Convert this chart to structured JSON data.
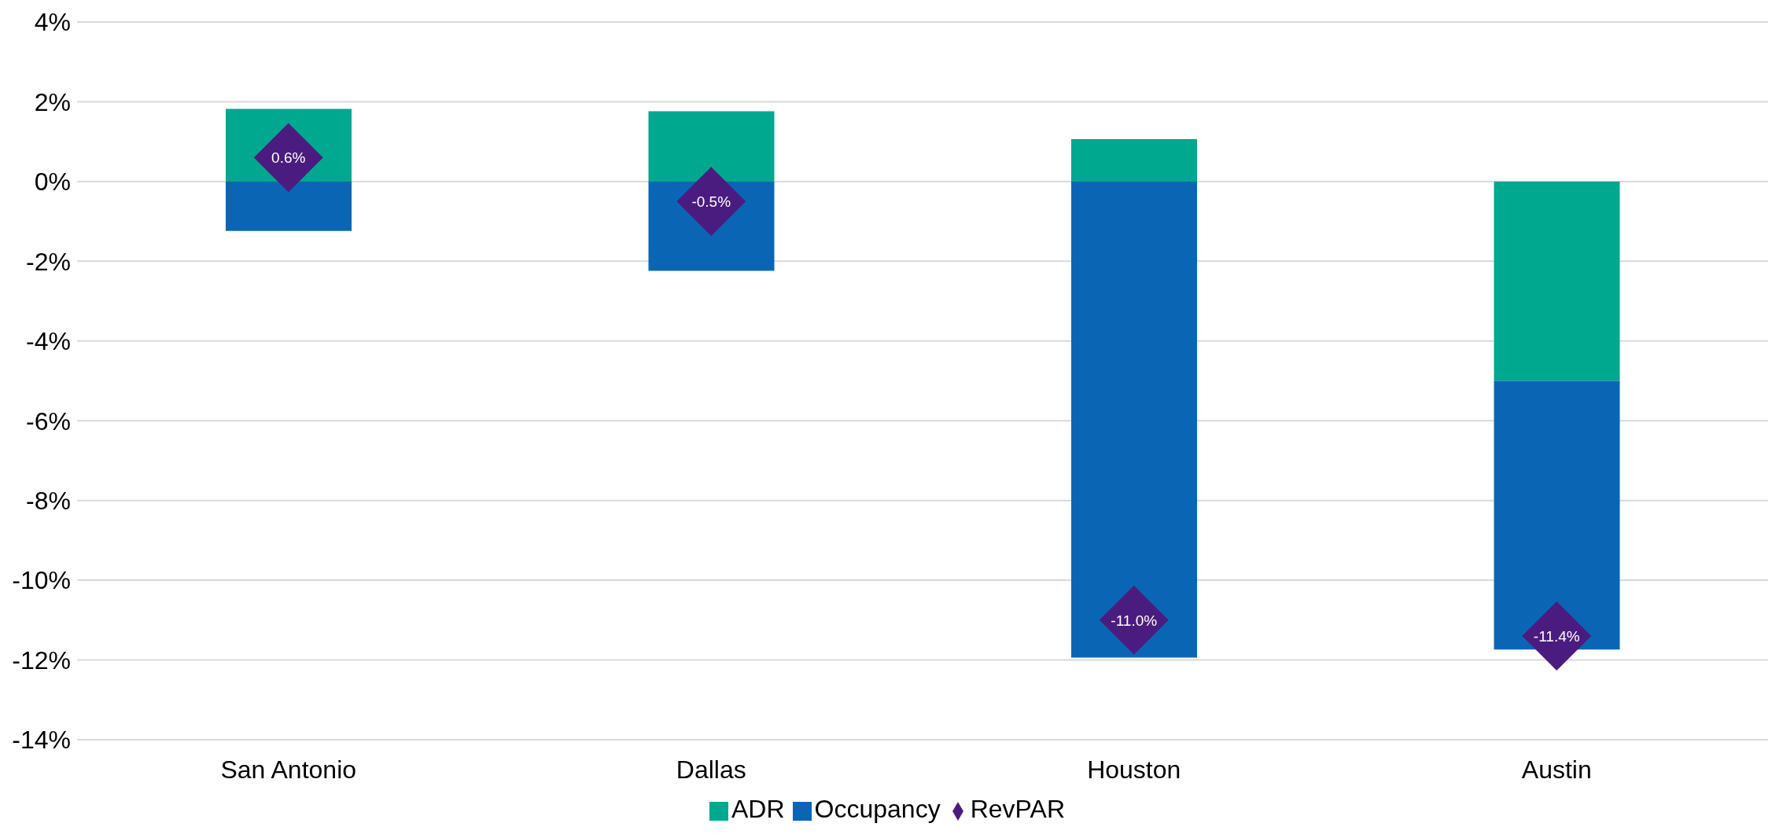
{
  "chart_data": {
    "type": "bar",
    "stacked": true,
    "categories": [
      "San Antonio",
      "Dallas",
      "Houston",
      "Austin"
    ],
    "series": [
      {
        "name": "ADR",
        "color": "#00a88f",
        "values": [
          1.82,
          1.76,
          1.06,
          -5.0
        ]
      },
      {
        "name": "Occupancy",
        "color": "#0a66b5",
        "values": [
          -1.24,
          -2.24,
          -11.94,
          -6.74
        ]
      },
      {
        "name": "RevPAR",
        "type": "scatter",
        "marker": "diamond",
        "color": "#4b1c7f",
        "values": [
          0.6,
          -0.5,
          -11.0,
          -11.4
        ],
        "value_labels": [
          "0.6%",
          "-0.5%",
          "-11.0%",
          "-11.4%"
        ]
      }
    ],
    "ylim": [
      -14,
      4
    ],
    "yticks": [
      {
        "value": 4,
        "label": "4%"
      },
      {
        "value": 2,
        "label": "2%"
      },
      {
        "value": 0,
        "label": "0%"
      },
      {
        "value": -2,
        "label": "-2%"
      },
      {
        "value": -4,
        "label": "-4%"
      },
      {
        "value": -6,
        "label": "-6%"
      },
      {
        "value": -8,
        "label": "-8%"
      },
      {
        "value": -10,
        "label": "-10%"
      },
      {
        "value": -12,
        "label": "-12%"
      },
      {
        "value": -14,
        "label": "-14%"
      }
    ],
    "grid": "y",
    "legend": "bottom"
  }
}
